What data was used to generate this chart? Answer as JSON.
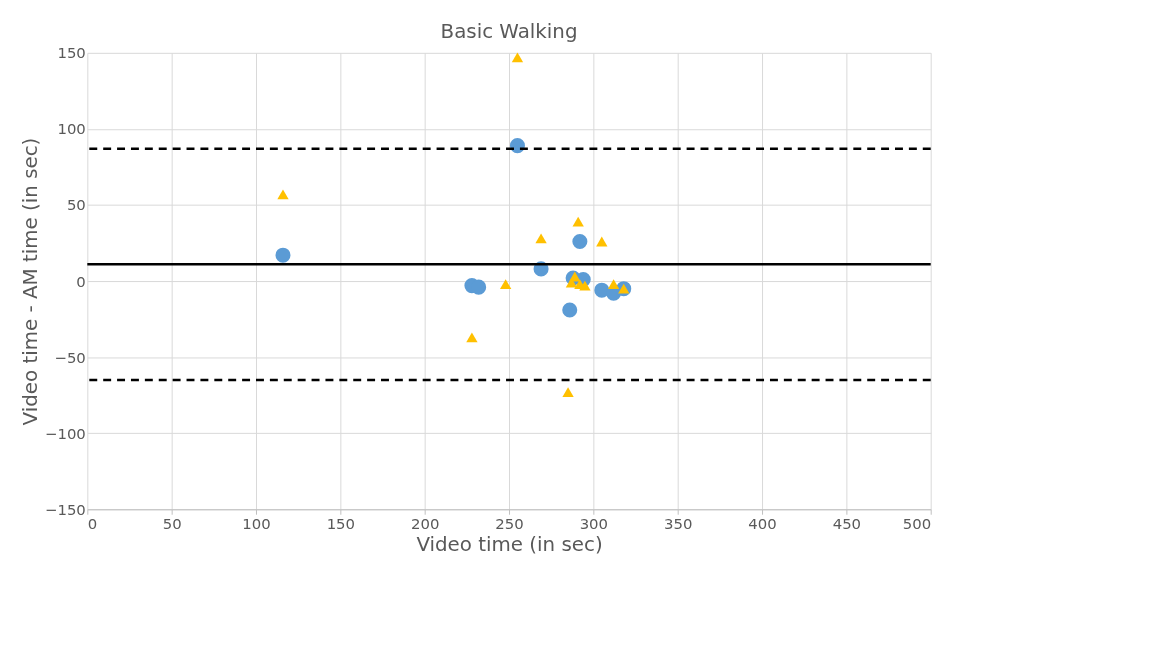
{
  "chart_data": {
    "type": "scatter",
    "title": "Basic Walking",
    "xlabel": "Video time (in sec)",
    "ylabel": "Video time - AM time (in sec)",
    "xlim": [
      0,
      500
    ],
    "xticks": [
      0,
      50,
      100,
      150,
      200,
      250,
      300,
      350,
      400,
      450,
      500
    ],
    "ylim": [
      -150,
      150
    ],
    "yticks": [
      -150,
      -100,
      -50,
      0,
      50,
      100,
      150
    ],
    "grid": true,
    "series": [
      {
        "color": "#5b9bd5",
        "marker": "circle",
        "x": [
          116,
          228,
          232,
          255,
          269,
          288,
          292,
          294,
          286,
          305,
          312,
          318
        ],
        "values": [
          17,
          -3,
          -4,
          89,
          8,
          2,
          26,
          1,
          -19,
          -6,
          -8,
          -5
        ]
      },
      {
        "color": "#ffc000",
        "marker": "triangle",
        "x": [
          116,
          228,
          248,
          255,
          269,
          291,
          287,
          289,
          292,
          295,
          305,
          285,
          312,
          318
        ],
        "values": [
          57,
          -37,
          -2,
          147,
          28,
          39,
          -1,
          3,
          -2,
          -3,
          26,
          -73,
          -2,
          -5
        ]
      }
    ],
    "ref_lines": [
      {
        "axis": "y",
        "value": 87,
        "line_style": "dashed",
        "color": "#000000"
      },
      {
        "axis": "y",
        "value": 11,
        "line_style": "solid",
        "color": "#000000"
      },
      {
        "axis": "y",
        "value": -65,
        "line_style": "dashed",
        "color": "#000000"
      }
    ]
  }
}
